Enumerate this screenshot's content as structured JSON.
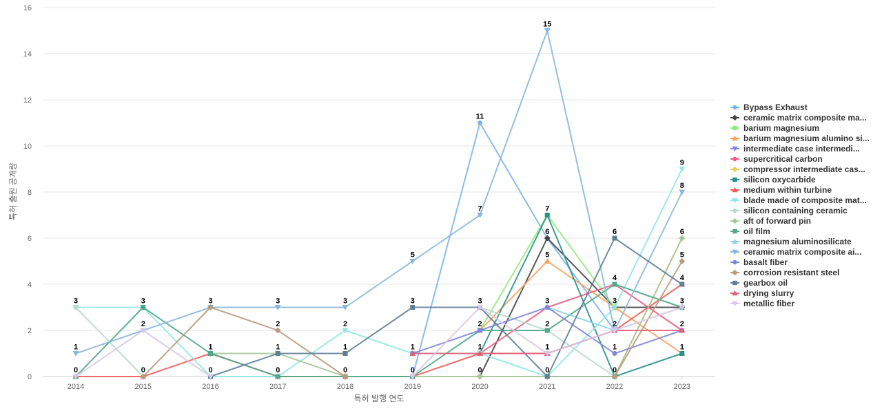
{
  "chart_data": {
    "type": "line",
    "title": "",
    "xlabel": "특허 발행 연도",
    "ylabel": "특허 출원 공개량",
    "x": [
      "2014",
      "2015",
      "2016",
      "2017",
      "2018",
      "2019",
      "2020",
      "2021",
      "2022",
      "2023"
    ],
    "ylim": [
      0,
      16
    ],
    "yticks": [
      0,
      2,
      4,
      6,
      8,
      10,
      12,
      14,
      16
    ],
    "grid": true,
    "legend_position": "right",
    "series": [
      {
        "name": "Bypass Exhaust",
        "color": "#7cb5ec",
        "marker": "circle",
        "values": [
          null,
          null,
          null,
          null,
          null,
          0,
          11,
          6,
          2,
          null
        ]
      },
      {
        "name": "ceramic matrix composite ma...",
        "color": "#434348",
        "marker": "diamond",
        "values": [
          null,
          null,
          null,
          null,
          null,
          null,
          0,
          6,
          3,
          3
        ]
      },
      {
        "name": "barium magnesium",
        "color": "#90ed7d",
        "marker": "square",
        "values": [
          null,
          null,
          null,
          null,
          null,
          null,
          2,
          7,
          3,
          null
        ]
      },
      {
        "name": "barium magnesium alumino si...",
        "color": "#f7a35c",
        "marker": "triangle",
        "values": [
          null,
          null,
          null,
          null,
          null,
          null,
          2,
          5,
          3,
          1
        ]
      },
      {
        "name": "intermediate case intermedi...",
        "color": "#8085e9",
        "marker": "triangle-down",
        "values": [
          null,
          null,
          null,
          null,
          null,
          null,
          null,
          0,
          0,
          null
        ]
      },
      {
        "name": "supercritical carbon",
        "color": "#f15c80",
        "marker": "circle",
        "values": [
          null,
          null,
          null,
          null,
          null,
          1,
          1,
          3,
          4,
          2
        ]
      },
      {
        "name": "compressor intermediate cas...",
        "color": "#e4d354",
        "marker": "diamond",
        "values": [
          null,
          null,
          null,
          null,
          null,
          null,
          null,
          null,
          0,
          6
        ]
      },
      {
        "name": "silicon oxycarbide",
        "color": "#2b908f",
        "marker": "square",
        "values": [
          null,
          null,
          null,
          null,
          null,
          null,
          1,
          7,
          0,
          1
        ]
      },
      {
        "name": "medium within turbine",
        "color": "#f45b5b",
        "marker": "triangle",
        "values": [
          0,
          0,
          1,
          0,
          0,
          0,
          1,
          1,
          2,
          4
        ]
      },
      {
        "name": "blade made of composite mat...",
        "color": "#91e8e1",
        "marker": "triangle-down",
        "values": [
          3,
          3,
          0,
          0,
          2,
          1,
          1,
          0,
          3,
          9
        ]
      },
      {
        "name": "silicon containing ceramic",
        "color": "#b5dcc9",
        "marker": "circle",
        "values": [
          3,
          0,
          null,
          null,
          null,
          null,
          3,
          2,
          0,
          null
        ]
      },
      {
        "name": "aft of forward pin",
        "color": "#a8c79a",
        "marker": "diamond",
        "values": [
          null,
          null,
          1,
          1,
          0,
          0,
          0,
          0,
          0,
          6
        ]
      },
      {
        "name": "oil film",
        "color": "#4fa88a",
        "marker": "square",
        "values": [
          0,
          3,
          1,
          0,
          0,
          0,
          2,
          2,
          4,
          3
        ]
      },
      {
        "name": "magnesium aluminosilicate",
        "color": "#8fd3e8",
        "marker": "triangle",
        "values": [
          null,
          null,
          null,
          null,
          null,
          null,
          null,
          3,
          2,
          null
        ]
      },
      {
        "name": "ceramic matrix composite ai...",
        "color": "#8ab8dc",
        "marker": "triangle-down",
        "values": [
          1,
          2,
          3,
          3,
          3,
          5,
          7,
          15,
          2,
          8
        ]
      },
      {
        "name": "basalt fiber",
        "color": "#7f86d9",
        "marker": "circle",
        "values": [
          null,
          null,
          null,
          null,
          null,
          1,
          2,
          3,
          1,
          2
        ]
      },
      {
        "name": "corrosion resistant steel",
        "color": "#b89a7c",
        "marker": "diamond",
        "values": [
          null,
          0,
          3,
          2,
          0,
          null,
          null,
          null,
          0,
          5
        ]
      },
      {
        "name": "gearbox oil",
        "color": "#5e7f96",
        "marker": "square",
        "values": [
          null,
          null,
          0,
          1,
          1,
          3,
          3,
          0,
          6,
          4
        ]
      },
      {
        "name": "drying slurry",
        "color": "#e0607a",
        "marker": "triangle",
        "values": [
          null,
          null,
          null,
          null,
          null,
          1,
          1,
          1,
          2,
          2
        ]
      },
      {
        "name": "metallic fiber",
        "color": "#d8c8e4",
        "marker": "triangle-down",
        "values": [
          0,
          2,
          0,
          null,
          null,
          0,
          3,
          1,
          2,
          3
        ]
      }
    ],
    "data_labels": [
      {
        "x": "2014",
        "y": 3,
        "text": "3"
      },
      {
        "x": "2014",
        "y": 1,
        "text": "1"
      },
      {
        "x": "2014",
        "y": 0,
        "text": "0"
      },
      {
        "x": "2015",
        "y": 3,
        "text": "3"
      },
      {
        "x": "2015",
        "y": 2,
        "text": "2"
      },
      {
        "x": "2015",
        "y": 0,
        "text": "0"
      },
      {
        "x": "2016",
        "y": 3,
        "text": "3"
      },
      {
        "x": "2016",
        "y": 1,
        "text": "1"
      },
      {
        "x": "2016",
        "y": 0,
        "text": "0"
      },
      {
        "x": "2017",
        "y": 3,
        "text": "3"
      },
      {
        "x": "2017",
        "y": 2,
        "text": "2"
      },
      {
        "x": "2017",
        "y": 1,
        "text": "1"
      },
      {
        "x": "2017",
        "y": 0,
        "text": "0"
      },
      {
        "x": "2018",
        "y": 3,
        "text": "3"
      },
      {
        "x": "2018",
        "y": 2,
        "text": "2"
      },
      {
        "x": "2018",
        "y": 1,
        "text": "1"
      },
      {
        "x": "2018",
        "y": 0,
        "text": "0"
      },
      {
        "x": "2019",
        "y": 5,
        "text": "5"
      },
      {
        "x": "2019",
        "y": 3,
        "text": "3"
      },
      {
        "x": "2019",
        "y": 1,
        "text": "1"
      },
      {
        "x": "2019",
        "y": 0,
        "text": "0"
      },
      {
        "x": "2020",
        "y": 11,
        "text": "11"
      },
      {
        "x": "2020",
        "y": 7,
        "text": "7"
      },
      {
        "x": "2020",
        "y": 3,
        "text": "3"
      },
      {
        "x": "2020",
        "y": 2,
        "text": "2"
      },
      {
        "x": "2020",
        "y": 1,
        "text": "1"
      },
      {
        "x": "2020",
        "y": 0,
        "text": "0"
      },
      {
        "x": "2021",
        "y": 15,
        "text": "15"
      },
      {
        "x": "2021",
        "y": 7,
        "text": "7"
      },
      {
        "x": "2021",
        "y": 6,
        "text": "6"
      },
      {
        "x": "2021",
        "y": 5,
        "text": "5"
      },
      {
        "x": "2021",
        "y": 3,
        "text": "3"
      },
      {
        "x": "2021",
        "y": 2,
        "text": "2"
      },
      {
        "x": "2021",
        "y": 1,
        "text": "1"
      },
      {
        "x": "2021",
        "y": 0,
        "text": "0"
      },
      {
        "x": "2022",
        "y": 6,
        "text": "6"
      },
      {
        "x": "2022",
        "y": 4,
        "text": "4"
      },
      {
        "x": "2022",
        "y": 3,
        "text": "3"
      },
      {
        "x": "2022",
        "y": 2,
        "text": "2"
      },
      {
        "x": "2022",
        "y": 1,
        "text": "1"
      },
      {
        "x": "2022",
        "y": 0,
        "text": "0"
      },
      {
        "x": "2023",
        "y": 9,
        "text": "9"
      },
      {
        "x": "2023",
        "y": 8,
        "text": "8"
      },
      {
        "x": "2023",
        "y": 6,
        "text": "6"
      },
      {
        "x": "2023",
        "y": 5,
        "text": "5"
      },
      {
        "x": "2023",
        "y": 4,
        "text": "4"
      },
      {
        "x": "2023",
        "y": 3,
        "text": "3"
      },
      {
        "x": "2023",
        "y": 2,
        "text": "2"
      },
      {
        "x": "2023",
        "y": 1,
        "text": "1"
      }
    ]
  }
}
